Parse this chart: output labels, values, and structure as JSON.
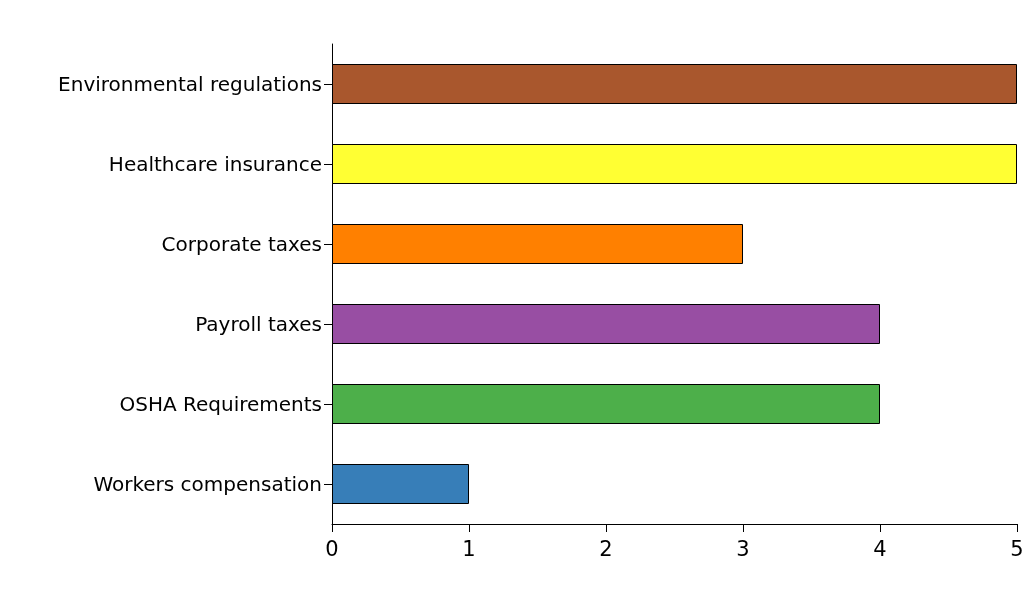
{
  "chart_data": {
    "type": "bar",
    "orientation": "horizontal",
    "categories": [
      "Environmental regulations",
      "Healthcare insurance",
      "Corporate taxes",
      "Payroll taxes",
      "OSHA Requirements",
      "Workers compensation"
    ],
    "values": [
      5,
      5,
      3,
      4,
      4,
      1
    ],
    "colors": [
      "#a9572d",
      "#ffff33",
      "#ff8000",
      "#984ea3",
      "#4daf4a",
      "#377eb8"
    ],
    "xlim": [
      0,
      5
    ],
    "xticks": [
      0,
      1,
      2,
      3,
      4,
      5
    ],
    "grid": false
  }
}
